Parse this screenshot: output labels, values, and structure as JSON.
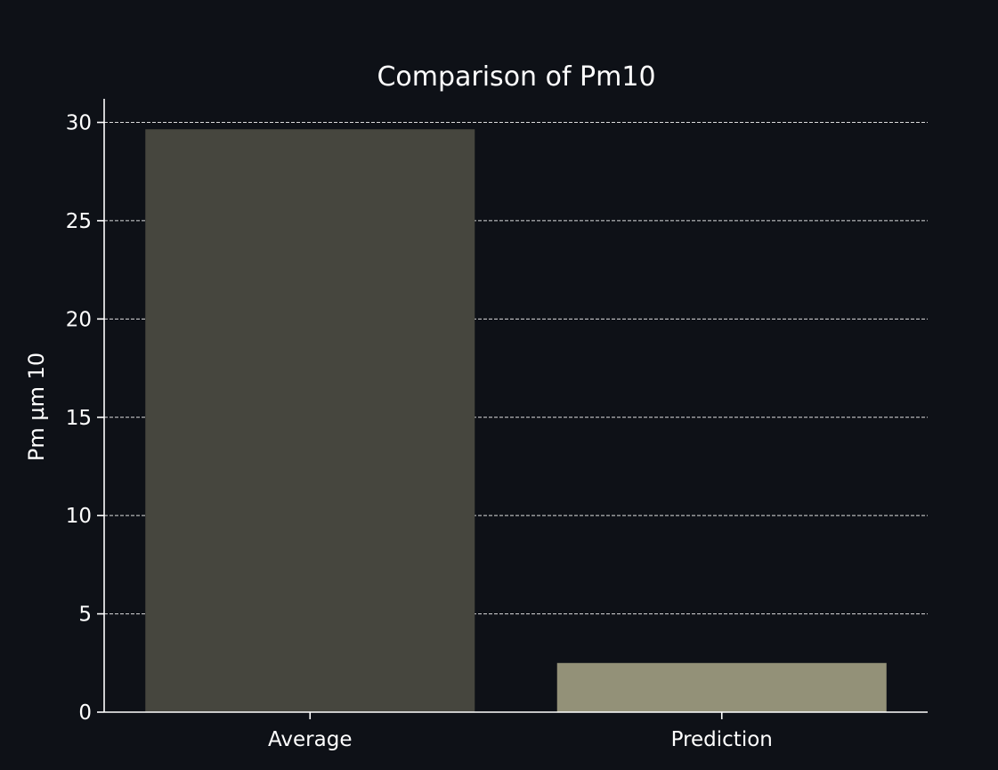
{
  "chart_data": {
    "type": "bar",
    "title": "Comparison of Pm10",
    "xlabel": "",
    "ylabel": "Pm µm 10",
    "categories": [
      "Average",
      "Prediction"
    ],
    "values": [
      29.65,
      2.5
    ],
    "ylim": [
      0,
      31.2
    ],
    "yticks": [
      0,
      5,
      10,
      15,
      20,
      25,
      30
    ],
    "grid": "y, dashed",
    "colors": {
      "background": "#0e1117",
      "bars": [
        "#46463e",
        "#939178"
      ],
      "axis": "#ffffff",
      "grid": "#ffffff",
      "text": "#ffffff"
    }
  }
}
